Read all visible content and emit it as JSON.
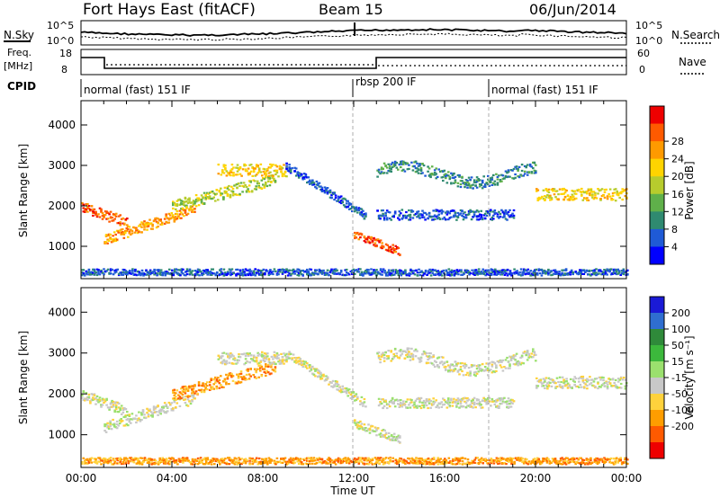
{
  "header": {
    "station": "Fort Hays East (fitACF)",
    "beam": "Beam 15",
    "date": "06/Jun/2014"
  },
  "noise_panel": {
    "left_label": "N.Sky",
    "right_label": "N.Search",
    "ticks": [
      "10^5",
      "10^0"
    ]
  },
  "freq_panel": {
    "left_label_1": "Freq.",
    "left_label_2": "[MHz]",
    "left_ticks": [
      "18",
      "8"
    ],
    "right_label": "Nave",
    "right_ticks": [
      "60",
      "0"
    ]
  },
  "cpid_panel": {
    "label": "CPID",
    "modes": [
      {
        "label": "normal (fast) 151 IF",
        "start_hour": 0
      },
      {
        "label": "rbsp 200 IF",
        "start_hour": 12
      },
      {
        "label": "normal (fast) 151 IF",
        "start_hour": 18
      }
    ]
  },
  "chart_data": [
    {
      "type": "heatmap",
      "panel": "power",
      "ylabel": "Slant Range [km]",
      "yticks": [
        "1000",
        "2000",
        "3000",
        "4000"
      ],
      "ylim": [
        200,
        4600
      ],
      "xlim": [
        0,
        24
      ],
      "colorbar": {
        "label": "Power [dB]",
        "ticks": [
          "4",
          "8",
          "12",
          "16",
          "20",
          "24",
          "28"
        ],
        "colors": [
          "#0000ff",
          "#1f5ad6",
          "#2f8a70",
          "#5fb04a",
          "#b7cc2d",
          "#ffd400",
          "#ff9a00",
          "#ff5a00",
          "#ee0000"
        ]
      }
    },
    {
      "type": "heatmap",
      "panel": "velocity",
      "ylabel": "Slant Range [km]",
      "yticks": [
        "1000",
        "2000",
        "3000",
        "4000"
      ],
      "ylim": [
        200,
        4600
      ],
      "xlim": [
        0,
        24
      ],
      "xticks": [
        "00:00",
        "04:00",
        "08:00",
        "12:00",
        "16:00",
        "20:00",
        "00:00"
      ],
      "xlabel": "Time UT",
      "colorbar": {
        "label": "Velocity [m s⁻¹]",
        "ticks": [
          "200",
          "100",
          "50",
          "15",
          "-15",
          "-50",
          "-100",
          "-200"
        ],
        "colors": [
          "#1a1ad6",
          "#2f6ed0",
          "#2f8a3a",
          "#3cb83c",
          "#9be06e",
          "#c8c8c8",
          "#ffd23c",
          "#ff9d00",
          "#ff5a00",
          "#ee0000"
        ]
      }
    }
  ]
}
